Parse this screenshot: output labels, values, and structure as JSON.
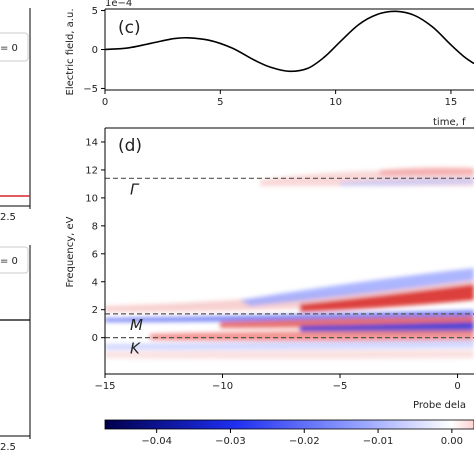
{
  "chart_data": [
    {
      "id": "left-top",
      "type": "line",
      "partial": true,
      "legend_text": "= 0",
      "tick_labels_x": [
        "2.5"
      ],
      "series_color": "#d62728"
    },
    {
      "id": "left-bottom",
      "type": "line",
      "partial": true,
      "legend_text": "= 0",
      "tick_labels_x": [
        "2.5"
      ],
      "series_color": "#000000"
    },
    {
      "id": "c",
      "type": "line",
      "panel_label": "(c)",
      "title": "",
      "xlabel": "time, f",
      "ylabel": "Electric field, a.u.",
      "y_offset_text": "1e−4",
      "xlim": [
        0,
        16
      ],
      "ylim": [
        -5.2,
        5.2
      ],
      "xticks": [
        0,
        5,
        10,
        15
      ],
      "xtick_labels": [
        "0",
        "5",
        "10",
        "15"
      ],
      "yticks": [
        -5,
        0,
        5
      ],
      "ytick_labels": [
        "−5",
        "0",
        "5"
      ],
      "series": [
        {
          "color": "#000000",
          "x": [
            0,
            1,
            2,
            3,
            3.6,
            4.5,
            5.5,
            6.5,
            7.2,
            8,
            8.8,
            9.5,
            10.2,
            11,
            11.8,
            12.6,
            13.4,
            14.2,
            15,
            15.6,
            16
          ],
          "y": [
            0,
            0.2,
            0.8,
            1.4,
            1.5,
            1.2,
            0.2,
            -1.4,
            -2.3,
            -2.8,
            -2.4,
            -1.0,
            1.0,
            3.2,
            4.5,
            4.9,
            4.4,
            2.9,
            0.6,
            -1.0,
            -1.8
          ]
        }
      ]
    },
    {
      "id": "d",
      "type": "heatmap",
      "panel_label": "(d)",
      "title": "",
      "xlabel": "Probe dela",
      "ylabel": "Frequency, eV",
      "xlim": [
        -15,
        0.7
      ],
      "ylim": [
        -2.6,
        15
      ],
      "xticks": [
        -15,
        -10,
        -5,
        0
      ],
      "xtick_labels": [
        "−15",
        "−10",
        "−5",
        "0"
      ],
      "yticks": [
        0,
        2,
        4,
        6,
        8,
        10,
        12,
        14
      ],
      "ytick_labels": [
        "0",
        "2",
        "4",
        "6",
        "8",
        "10",
        "12",
        "14"
      ],
      "reference_lines": [
        {
          "y": 11.4,
          "label": "Γ"
        },
        {
          "y": 1.7,
          "label": "M"
        },
        {
          "y": 0.0,
          "label": "K"
        }
      ],
      "colormap": "seismic",
      "colorbar": {
        "orientation": "horizontal",
        "ticks": [
          -0.04,
          -0.03,
          -0.02,
          -0.01,
          0.0
        ],
        "tick_labels": [
          "−0.04",
          "−0.03",
          "−0.02",
          "−0.01",
          "0.00"
        ],
        "range": [
          -0.047,
          0.003
        ]
      }
    }
  ]
}
